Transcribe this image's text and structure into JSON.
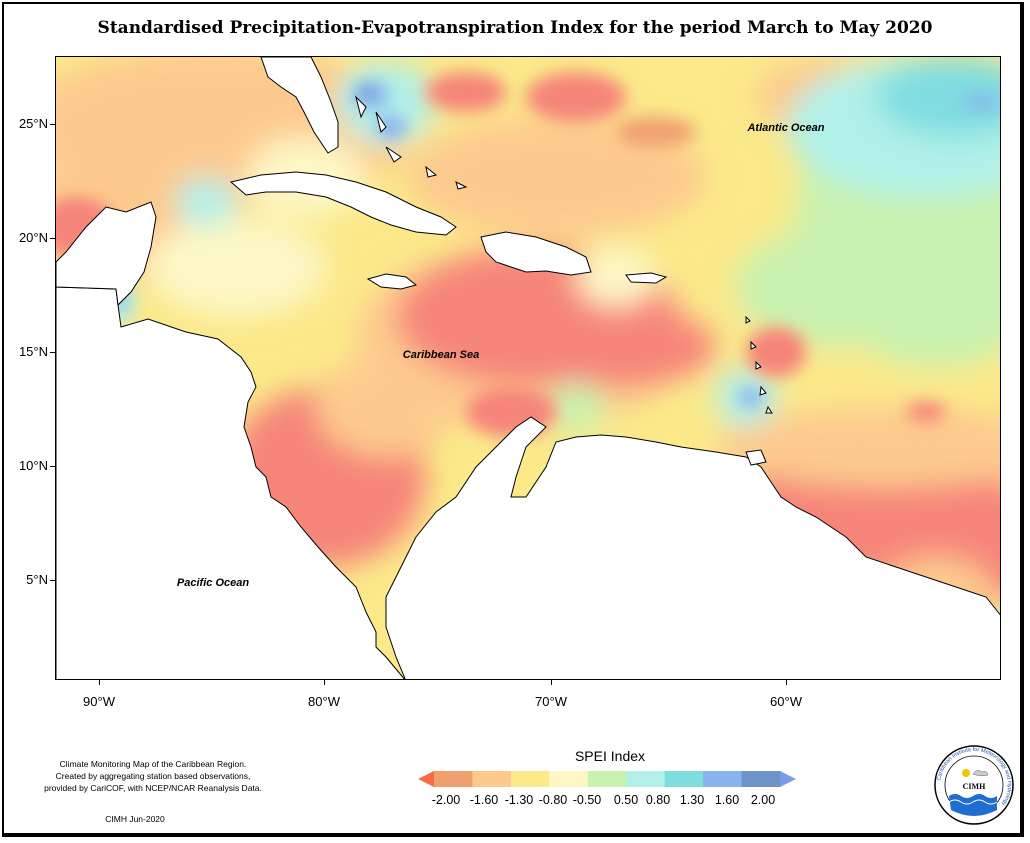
{
  "title": "Standardised Precipitation-Evapotranspiration Index for the period March to May 2020",
  "map": {
    "ocean_labels": [
      "Atlantic Ocean",
      "Caribbean Sea",
      "Pacific Ocean"
    ],
    "lat_labels": [
      "25°N",
      "20°N",
      "15°N",
      "10°N",
      "5°N"
    ],
    "lon_labels": [
      "90°W",
      "80°W",
      "70°W",
      "60°W"
    ]
  },
  "legend": {
    "title": "SPEI Index",
    "labels": [
      "-2.00",
      "-1.60",
      "-1.30",
      "-0.80",
      "-0.50",
      "0.50",
      "0.80",
      "1.30",
      "1.60",
      "2.00"
    ],
    "colors": [
      "#f46d43",
      "#f0a070",
      "#fdca8e",
      "#fbe98a",
      "#fdf7c6",
      "#c9f2b0",
      "#b0f0e8",
      "#7fdde0",
      "#8ab4f0",
      "#6e93c8",
      "#7b9ae8"
    ]
  },
  "credits": {
    "lines": [
      "Climate Monitoring Map of the Caribbean Region.",
      "Created by aggregating station based observations,",
      "provided by CariCOF, with NCEP/NCAR Reanalysis Data."
    ],
    "date": "CIMH Jun-2020"
  },
  "logo": {
    "text": "CIMH",
    "ring_text": "Caribbean Institute for Meteorology and Hydrology"
  }
}
